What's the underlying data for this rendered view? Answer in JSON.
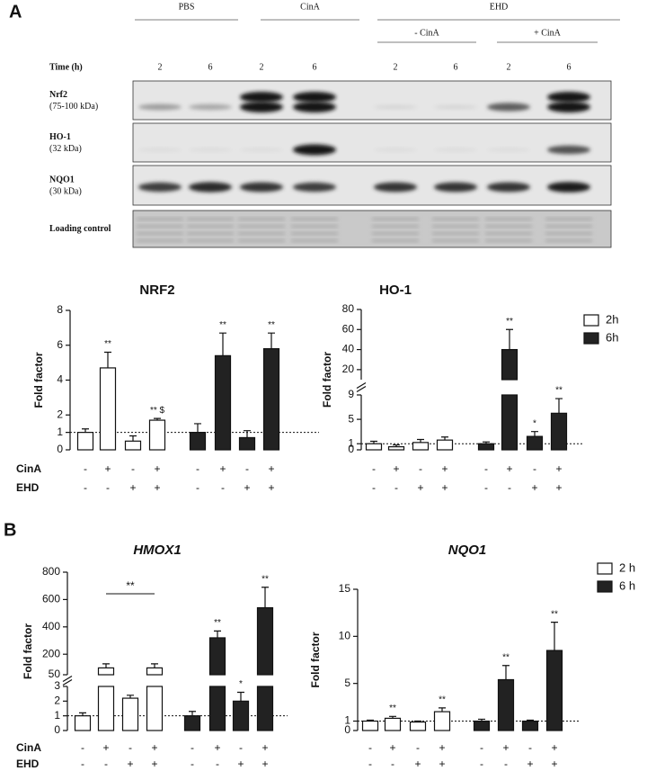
{
  "panels": [
    "A",
    "B"
  ],
  "blot": {
    "groups": [
      "PBS",
      "CinA",
      "EHD"
    ],
    "subgroups": [
      "- CinA",
      "+ CinA"
    ],
    "time_label": "Time (h)",
    "times": [
      2,
      6,
      2,
      6,
      2,
      6,
      2,
      6
    ],
    "rows": [
      {
        "name": "Nrf2",
        "size": "(75-100 kDa)"
      },
      {
        "name": "HO-1",
        "size": "(32 kDa)"
      },
      {
        "name": "NQO1",
        "size": "(30 kDa)"
      },
      {
        "name": "Loading control"
      }
    ]
  },
  "chart_data": [
    {
      "type": "bar",
      "title": "NRF2",
      "y_label": "Fold factor",
      "ylim": [
        0,
        8
      ],
      "yticks": [
        0,
        1,
        2,
        4,
        6,
        8
      ],
      "refline": 1,
      "series": [
        {
          "name": "2h",
          "color": "#ffffff",
          "values": [
            1.0,
            4.7,
            0.5,
            1.7
          ],
          "errors": [
            0.2,
            0.9,
            0.3,
            0.1
          ]
        },
        {
          "name": "6h",
          "color": "#222222",
          "values": [
            1.0,
            5.4,
            0.7,
            5.8
          ],
          "errors": [
            0.5,
            1.3,
            0.4,
            0.9
          ]
        }
      ],
      "conditions": [
        {
          "name": "CinA",
          "values": [
            "-",
            "+",
            "-",
            "+",
            "-",
            "+",
            "-",
            "+"
          ]
        },
        {
          "name": "EHD",
          "values": [
            "-",
            "-",
            "+",
            "+",
            "-",
            "-",
            "+",
            "+"
          ]
        }
      ],
      "annotations": [
        {
          "text": "**",
          "series": 0,
          "index": 1
        },
        {
          "text": "** $",
          "series": 0,
          "index": 3
        },
        {
          "text": "**",
          "series": 1,
          "index": 1
        },
        {
          "text": "**",
          "series": 1,
          "index": 3
        }
      ]
    },
    {
      "type": "bar",
      "title": "HO-1",
      "y_label": "Fold factor",
      "ysegments": [
        {
          "ylim": [
            0,
            9
          ],
          "yticks": [
            0,
            1,
            5,
            9
          ]
        },
        {
          "ylim": [
            10,
            80
          ],
          "yticks": [
            20,
            40,
            60,
            80
          ]
        }
      ],
      "refline": 1,
      "legend": true,
      "series": [
        {
          "name": "2h",
          "color": "#ffffff",
          "values": [
            1.0,
            0.5,
            1.2,
            1.6
          ],
          "errors": [
            0.4,
            0.3,
            0.5,
            0.5
          ]
        },
        {
          "name": "6h",
          "color": "#222222",
          "values": [
            1.0,
            40,
            2.2,
            6.0
          ],
          "errors": [
            0.3,
            20,
            0.8,
            2.4
          ]
        }
      ],
      "conditions": [
        {
          "values": [
            "-",
            "+",
            "-",
            "+",
            "-",
            "+",
            "-",
            "+"
          ]
        },
        {
          "values": [
            "-",
            "-",
            "+",
            "+",
            "-",
            "-",
            "+",
            "+"
          ]
        }
      ],
      "annotations": [
        {
          "text": "**",
          "series": 1,
          "index": 1
        },
        {
          "text": "*",
          "series": 1,
          "index": 2
        },
        {
          "text": "**",
          "series": 1,
          "index": 3
        }
      ]
    },
    {
      "type": "bar",
      "title": "HMOX1",
      "y_label": "Fold factor",
      "ysegments": [
        {
          "ylim": [
            0,
            3
          ],
          "yticks": [
            0,
            1,
            2,
            3
          ]
        },
        {
          "ylim": [
            50,
            800
          ],
          "yticks": [
            50,
            200,
            400,
            600,
            800
          ]
        }
      ],
      "refline": 1,
      "series": [
        {
          "name": "2 h",
          "color": "#ffffff",
          "values": [
            1.0,
            100,
            2.2,
            100
          ],
          "errors": [
            0.2,
            30,
            0.2,
            30
          ]
        },
        {
          "name": "6 h",
          "color": "#222222",
          "values": [
            1.0,
            320,
            2.0,
            540
          ],
          "errors": [
            0.3,
            50,
            0.6,
            150
          ]
        }
      ],
      "conditions": [
        {
          "name": "CinA",
          "values": [
            "-",
            "+",
            "-",
            "+",
            "-",
            "+",
            "-",
            "+"
          ]
        },
        {
          "name": "EHD",
          "values": [
            "-",
            "-",
            "+",
            "+",
            "-",
            "-",
            "+",
            "+"
          ]
        }
      ],
      "annotations": [
        {
          "text": "**",
          "series": 0,
          "from": 1,
          "to": 3
        },
        {
          "text": "**",
          "series": 1,
          "index": 1
        },
        {
          "text": "*",
          "series": 1,
          "index": 2
        },
        {
          "text": "**",
          "series": 1,
          "index": 3
        }
      ]
    },
    {
      "type": "bar",
      "title": "NQO1",
      "y_label": "Fold factor",
      "ylim": [
        0,
        15
      ],
      "yticks": [
        0,
        1,
        5,
        10,
        15
      ],
      "refline": 1,
      "legend": true,
      "series": [
        {
          "name": "2 h",
          "color": "#ffffff",
          "values": [
            1.0,
            1.3,
            0.9,
            2.0
          ],
          "errors": [
            0.1,
            0.2,
            0.1,
            0.4
          ]
        },
        {
          "name": "6 h",
          "color": "#222222",
          "values": [
            1.0,
            5.4,
            1.0,
            8.5
          ],
          "errors": [
            0.2,
            1.5,
            0.1,
            3.0
          ]
        }
      ],
      "conditions": [
        {
          "values": [
            "-",
            "+",
            "-",
            "+",
            "-",
            "+",
            "-",
            "+"
          ]
        },
        {
          "values": [
            "-",
            "-",
            "+",
            "+",
            "-",
            "-",
            "+",
            "+"
          ]
        }
      ],
      "annotations": [
        {
          "text": "**",
          "series": 0,
          "index": 1
        },
        {
          "text": "**",
          "series": 0,
          "index": 3
        },
        {
          "text": "**",
          "series": 1,
          "index": 1
        },
        {
          "text": "**",
          "series": 1,
          "index": 3
        }
      ]
    }
  ]
}
